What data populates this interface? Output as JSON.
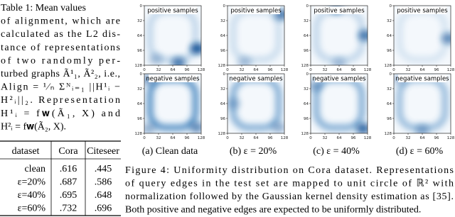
{
  "table_caption": [
    "Table 1: Mean values",
    "of alignment, which are",
    "calculated as the L2 dis-",
    "tance of representations",
    "of two randomly per-",
    "turbed graphs Ã¹₁, Ã²₂, i.e.,",
    "Align = ¹⁄ₙ Σᴺᵢ₌₁ ||H¹ᵢ −",
    "H²ᵢ||₂.   Representation",
    "H¹ᵢ  =  f𝐰(Ã₁, X)  and",
    "H²ᵢ = f𝐰(Ã₂, X)."
  ],
  "table": {
    "header": [
      "dataset",
      "Cora",
      "Citeseer"
    ],
    "rows": [
      [
        "clean",
        ".616",
        ".445"
      ],
      [
        "ε=20%",
        ".687",
        ".586"
      ],
      [
        "ε=40%",
        ".695",
        ".648"
      ],
      [
        "ε=60%",
        ".732",
        ".696"
      ]
    ]
  },
  "figure": {
    "ticks": [
      0,
      32,
      64,
      96,
      128
    ],
    "panels": [
      {
        "top_title": "positive samples",
        "bottom_title": "negative samples",
        "subcaption": "(a) Clean data"
      },
      {
        "top_title": "positive samples",
        "bottom_title": "negative samples",
        "subcaption": "(b) ε = 20%"
      },
      {
        "top_title": "positive samples",
        "bottom_title": "negative samples",
        "subcaption": "(c) ε = 40%"
      },
      {
        "top_title": "positive samples",
        "bottom_title": "negative samples",
        "subcaption": "(d) ε = 60%"
      }
    ],
    "caption": [
      "Figure 4: Uniformity distribution on Cora dataset. Representations",
      "of query edges in the test set are mapped to unit circle of ℝ² with",
      "normalization followed by the Gaussian kernel density estimation as [35].",
      "Both positive and negative edges are expected to be uniformly distributed."
    ]
  }
}
